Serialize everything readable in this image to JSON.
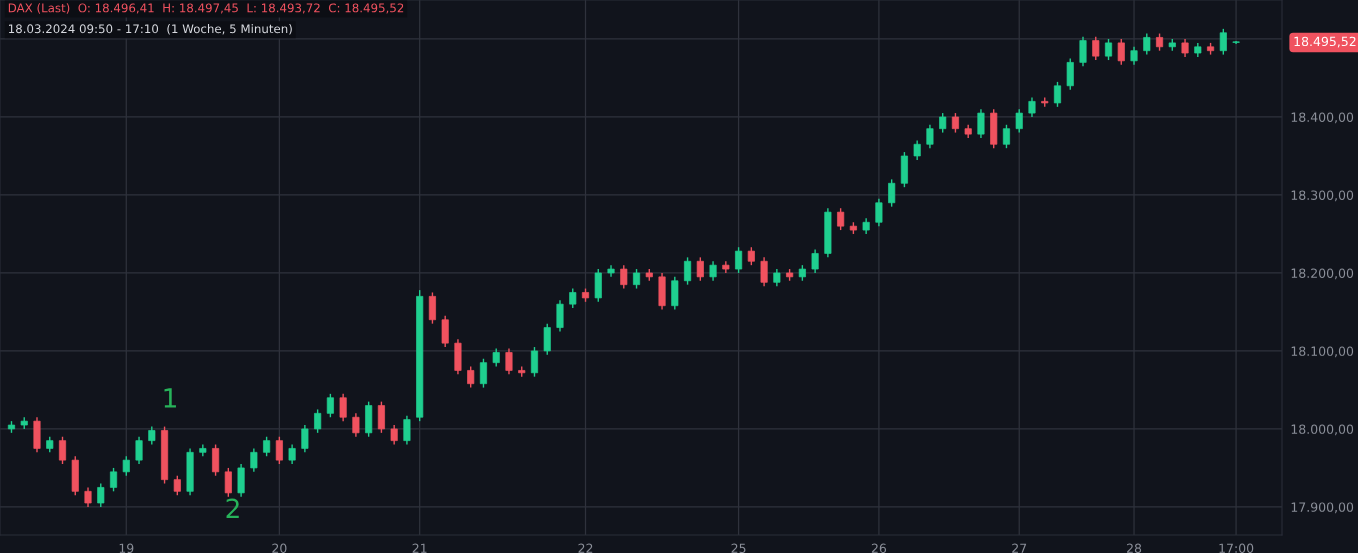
{
  "chart_data": {
    "type": "candlestick",
    "title": "DAX (Last)  O: 18.496,41  H: 18.497,45  L: 18.493,72  C: 18.495,52",
    "subtitle": "18.03.2024 09:50 - 17:10  (1 Woche, 5 Minuten)",
    "categories": [
      null,
      null,
      null,
      null,
      null,
      null,
      null,
      null,
      null,
      "19",
      null,
      null,
      null,
      null,
      null,
      null,
      null,
      null,
      null,
      null,
      null,
      "20",
      null,
      null,
      null,
      null,
      null,
      null,
      null,
      null,
      null,
      null,
      "21",
      null,
      null,
      null,
      null,
      null,
      null,
      null,
      null,
      null,
      null,
      null,
      null,
      "22",
      null,
      null,
      null,
      null,
      null,
      null,
      null,
      null,
      null,
      null,
      null,
      "25",
      null,
      null,
      null,
      null,
      null,
      null,
      null,
      null,
      null,
      null,
      "26",
      null,
      null,
      null,
      null,
      null,
      null,
      null,
      null,
      null,
      null,
      "27",
      null,
      null,
      null,
      null,
      null,
      null,
      null,
      null,
      "28",
      null,
      null,
      null,
      null,
      null,
      null,
      null,
      "17:00"
    ],
    "ohlc": [
      [
        18000,
        18010,
        17995,
        18005
      ],
      [
        18005,
        18015,
        18000,
        18010
      ],
      [
        18010,
        18015,
        17970,
        17975
      ],
      [
        17975,
        17990,
        17970,
        17985
      ],
      [
        17985,
        17990,
        17955,
        17960
      ],
      [
        17960,
        17965,
        17915,
        17920
      ],
      [
        17920,
        17925,
        17900,
        17905
      ],
      [
        17905,
        17930,
        17900,
        17925
      ],
      [
        17925,
        17950,
        17920,
        17945
      ],
      [
        17945,
        17965,
        17940,
        17960
      ],
      [
        17960,
        17990,
        17955,
        17985
      ],
      [
        17985,
        18003,
        17980,
        17998
      ],
      [
        17998,
        18003,
        17930,
        17935
      ],
      [
        17935,
        17940,
        17915,
        17920
      ],
      [
        17920,
        17975,
        17915,
        17970
      ],
      [
        17970,
        17980,
        17965,
        17975
      ],
      [
        17975,
        17980,
        17940,
        17945
      ],
      [
        17945,
        17950,
        17913,
        17918
      ],
      [
        17918,
        17955,
        17913,
        17950
      ],
      [
        17950,
        17975,
        17945,
        17970
      ],
      [
        17970,
        17990,
        17965,
        17985
      ],
      [
        17985,
        17990,
        17955,
        17960
      ],
      [
        17960,
        17980,
        17955,
        17975
      ],
      [
        17975,
        18005,
        17970,
        18000
      ],
      [
        18000,
        18025,
        17995,
        18020
      ],
      [
        18020,
        18045,
        18015,
        18040
      ],
      [
        18040,
        18045,
        18010,
        18015
      ],
      [
        18015,
        18020,
        17990,
        17995
      ],
      [
        17995,
        18035,
        17990,
        18030
      ],
      [
        18030,
        18035,
        17995,
        18000
      ],
      [
        18000,
        18005,
        17980,
        17985
      ],
      [
        17985,
        18017,
        17980,
        18012
      ],
      [
        18015,
        18178,
        18010,
        18170
      ],
      [
        18170,
        18175,
        18135,
        18140
      ],
      [
        18140,
        18145,
        18105,
        18110
      ],
      [
        18110,
        18115,
        18070,
        18075
      ],
      [
        18075,
        18080,
        18053,
        18058
      ],
      [
        18058,
        18090,
        18053,
        18085
      ],
      [
        18085,
        18103,
        18080,
        18098
      ],
      [
        18098,
        18103,
        18070,
        18075
      ],
      [
        18075,
        18080,
        18067,
        18072
      ],
      [
        18072,
        18105,
        18067,
        18100
      ],
      [
        18100,
        18135,
        18095,
        18130
      ],
      [
        18130,
        18165,
        18125,
        18160
      ],
      [
        18160,
        18180,
        18155,
        18175
      ],
      [
        18175,
        18180,
        18163,
        18168
      ],
      [
        18168,
        18205,
        18163,
        18200
      ],
      [
        18200,
        18210,
        18195,
        18205
      ],
      [
        18205,
        18210,
        18180,
        18185
      ],
      [
        18185,
        18205,
        18180,
        18200
      ],
      [
        18200,
        18205,
        18190,
        18195
      ],
      [
        18195,
        18200,
        18153,
        18158
      ],
      [
        18158,
        18195,
        18153,
        18190
      ],
      [
        18190,
        18220,
        18185,
        18215
      ],
      [
        18215,
        18220,
        18190,
        18195
      ],
      [
        18195,
        18215,
        18190,
        18210
      ],
      [
        18210,
        18215,
        18200,
        18205
      ],
      [
        18205,
        18233,
        18200,
        18228
      ],
      [
        18228,
        18233,
        18210,
        18215
      ],
      [
        18215,
        18220,
        18183,
        18188
      ],
      [
        18188,
        18205,
        18183,
        18200
      ],
      [
        18200,
        18205,
        18190,
        18195
      ],
      [
        18195,
        18210,
        18190,
        18205
      ],
      [
        18205,
        18230,
        18200,
        18225
      ],
      [
        18225,
        18283,
        18220,
        18278
      ],
      [
        18278,
        18283,
        18255,
        18260
      ],
      [
        18260,
        18265,
        18250,
        18255
      ],
      [
        18255,
        18270,
        18250,
        18265
      ],
      [
        18265,
        18295,
        18260,
        18290
      ],
      [
        18290,
        18320,
        18285,
        18315
      ],
      [
        18315,
        18355,
        18310,
        18350
      ],
      [
        18350,
        18370,
        18345,
        18365
      ],
      [
        18365,
        18390,
        18360,
        18385
      ],
      [
        18385,
        18405,
        18380,
        18400
      ],
      [
        18400,
        18405,
        18380,
        18385
      ],
      [
        18385,
        18390,
        18373,
        18378
      ],
      [
        18378,
        18410,
        18373,
        18405
      ],
      [
        18405,
        18410,
        18360,
        18365
      ],
      [
        18365,
        18390,
        18360,
        18385
      ],
      [
        18385,
        18410,
        18380,
        18405
      ],
      [
        18405,
        18425,
        18400,
        18420
      ],
      [
        18420,
        18425,
        18413,
        18418
      ],
      [
        18418,
        18445,
        18413,
        18440
      ],
      [
        18440,
        18475,
        18435,
        18470
      ],
      [
        18470,
        18503,
        18465,
        18498
      ],
      [
        18498,
        18503,
        18473,
        18478
      ],
      [
        18478,
        18500,
        18473,
        18495
      ],
      [
        18495,
        18500,
        18467,
        18472
      ],
      [
        18472,
        18490,
        18467,
        18485
      ],
      [
        18485,
        18507,
        18480,
        18502
      ],
      [
        18502,
        18507,
        18485,
        18490
      ],
      [
        18490,
        18500,
        18485,
        18495
      ],
      [
        18495,
        18500,
        18477,
        18482
      ],
      [
        18482,
        18495,
        18477,
        18490
      ],
      [
        18490,
        18495,
        18480,
        18485
      ],
      [
        18485,
        18513,
        18480,
        18508
      ],
      [
        18496.41,
        18497.45,
        18493.72,
        18495.52
      ]
    ],
    "colors": [
      "#1fcf8f",
      "#1fcf8f",
      "#f0525f",
      "#1fcf8f",
      "#f0525f",
      "#f0525f",
      "#f0525f",
      "#1fcf8f",
      "#1fcf8f",
      "#1fcf8f",
      "#1fcf8f",
      "#1fcf8f",
      "#f0525f",
      "#f0525f",
      "#1fcf8f",
      "#1fcf8f",
      "#f0525f",
      "#f0525f",
      "#1fcf8f",
      "#1fcf8f",
      "#1fcf8f",
      "#f0525f",
      "#1fcf8f",
      "#1fcf8f",
      "#1fcf8f",
      "#1fcf8f",
      "#f0525f",
      "#f0525f",
      "#1fcf8f",
      "#f0525f",
      "#f0525f",
      "#1fcf8f",
      "#1fcf8f",
      "#f0525f",
      "#f0525f",
      "#f0525f",
      "#f0525f",
      "#1fcf8f",
      "#1fcf8f",
      "#f0525f",
      "#f0525f",
      "#1fcf8f",
      "#1fcf8f",
      "#1fcf8f",
      "#1fcf8f",
      "#f0525f",
      "#1fcf8f",
      "#1fcf8f",
      "#f0525f",
      "#1fcf8f",
      "#f0525f",
      "#f0525f",
      "#1fcf8f",
      "#1fcf8f",
      "#f0525f",
      "#1fcf8f",
      "#f0525f",
      "#1fcf8f",
      "#f0525f",
      "#f0525f",
      "#1fcf8f",
      "#f0525f",
      "#1fcf8f",
      "#1fcf8f",
      "#1fcf8f",
      "#f0525f",
      "#f0525f",
      "#1fcf8f",
      "#1fcf8f",
      "#1fcf8f",
      "#1fcf8f",
      "#1fcf8f",
      "#1fcf8f",
      "#1fcf8f",
      "#f0525f",
      "#f0525f",
      "#1fcf8f",
      "#f0525f",
      "#1fcf8f",
      "#1fcf8f",
      "#1fcf8f",
      "#f0525f",
      "#1fcf8f",
      "#1fcf8f",
      "#1fcf8f",
      "#f0525f",
      "#1fcf8f",
      "#f0525f",
      "#1fcf8f",
      "#1fcf8f",
      "#f0525f",
      "#1fcf8f",
      "#f0525f",
      "#1fcf8f",
      "#f0525f",
      "#1fcf8f",
      "#1fcf8f"
    ],
    "ylim": [
      17864,
      18550
    ],
    "yticks": [
      {
        "value": 17900,
        "label": "17.900,00"
      },
      {
        "value": 18000,
        "label": "18.000,00"
      },
      {
        "value": 18100,
        "label": "18.100,00"
      },
      {
        "value": 18200,
        "label": "18.200,00"
      },
      {
        "value": 18300,
        "label": "18.300,00"
      },
      {
        "value": 18400,
        "label": "18.400,00"
      },
      {
        "value": 18500,
        "label": null
      }
    ],
    "grid": true,
    "annotations": [
      "1",
      "2",
      "18.495,52"
    ]
  }
}
